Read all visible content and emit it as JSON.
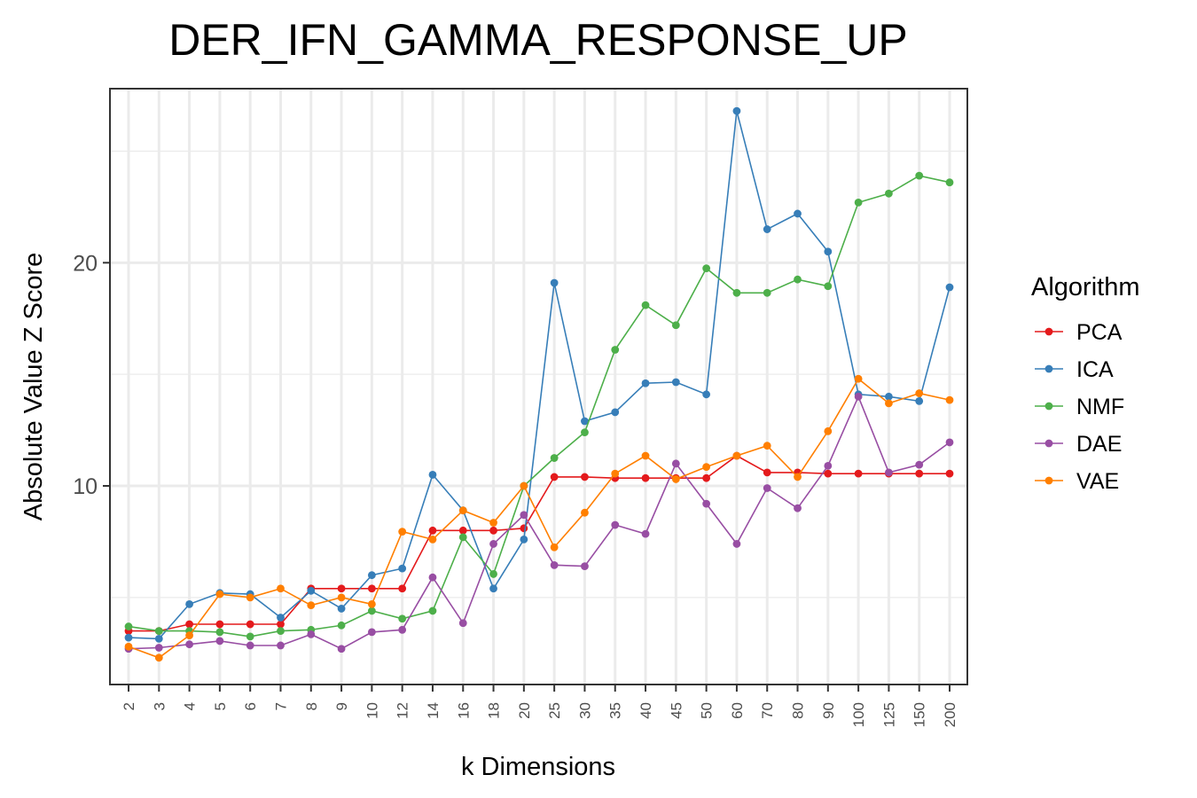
{
  "chart_data": {
    "type": "line",
    "title": "DER_IFN_GAMMA_RESPONSE_UP",
    "xlabel": "k Dimensions",
    "ylabel": "Absolute Value Z Score",
    "categories": [
      "2",
      "3",
      "4",
      "5",
      "6",
      "7",
      "8",
      "9",
      "10",
      "12",
      "14",
      "16",
      "18",
      "20",
      "25",
      "30",
      "35",
      "40",
      "45",
      "50",
      "60",
      "70",
      "80",
      "90",
      "100",
      "125",
      "150",
      "200"
    ],
    "y_ticks": [
      "10",
      "20"
    ],
    "ylim": [
      1.1,
      27.8
    ],
    "grid": true,
    "legend_title": "Algorithm",
    "legend_position": "right",
    "series": [
      {
        "name": "PCA",
        "color": "#E41A1C",
        "values": [
          3.5,
          3.5,
          3.8,
          3.8,
          3.8,
          3.8,
          5.4,
          5.4,
          5.4,
          5.4,
          8.0,
          8.0,
          8.0,
          8.1,
          10.4,
          10.4,
          10.35,
          10.35,
          10.35,
          10.35,
          11.35,
          10.6,
          10.6,
          10.55,
          10.55,
          10.55,
          10.55,
          10.55
        ]
      },
      {
        "name": "ICA",
        "color": "#377EB8",
        "values": [
          3.2,
          3.15,
          4.7,
          5.2,
          5.15,
          4.1,
          5.3,
          4.5,
          6.0,
          6.3,
          10.5,
          8.9,
          5.4,
          7.6,
          19.1,
          12.9,
          13.3,
          14.6,
          14.65,
          14.1,
          26.8,
          21.5,
          22.2,
          20.5,
          14.1,
          14.0,
          13.8,
          18.9
        ]
      },
      {
        "name": "NMF",
        "color": "#4DAF4A",
        "values": [
          3.7,
          3.5,
          3.5,
          3.45,
          3.25,
          3.5,
          3.55,
          3.75,
          4.4,
          4.05,
          4.4,
          7.7,
          6.05,
          10.0,
          11.25,
          12.4,
          16.1,
          18.1,
          17.2,
          19.75,
          18.65,
          18.65,
          19.25,
          18.95,
          22.7,
          23.1,
          23.9,
          23.6
        ]
      },
      {
        "name": "DAE",
        "color": "#984EA3",
        "values": [
          2.7,
          2.75,
          2.9,
          3.05,
          2.85,
          2.85,
          3.35,
          2.7,
          3.45,
          3.55,
          5.9,
          3.85,
          7.4,
          8.7,
          6.45,
          6.4,
          8.25,
          7.85,
          11.0,
          9.2,
          7.4,
          9.9,
          9.0,
          10.9,
          14.0,
          10.6,
          10.95,
          11.95
        ]
      },
      {
        "name": "VAE",
        "color": "#FF7F00",
        "values": [
          2.8,
          2.3,
          3.3,
          5.15,
          5.0,
          5.4,
          4.65,
          5.0,
          4.7,
          7.95,
          7.6,
          8.9,
          8.35,
          10.0,
          7.25,
          8.8,
          10.55,
          11.35,
          10.3,
          10.85,
          11.35,
          11.8,
          10.4,
          12.45,
          14.8,
          13.7,
          14.15,
          13.85
        ]
      }
    ]
  }
}
